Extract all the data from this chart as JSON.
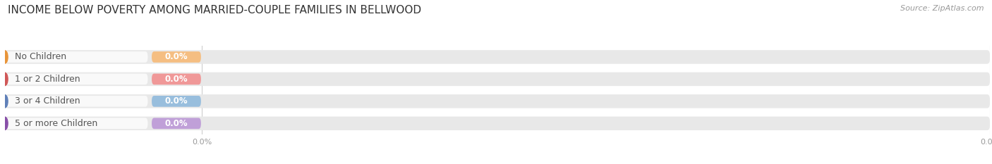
{
  "title": "INCOME BELOW POVERTY AMONG MARRIED-COUPLE FAMILIES IN BELLWOOD",
  "source": "Source: ZipAtlas.com",
  "categories": [
    "No Children",
    "1 or 2 Children",
    "3 or 4 Children",
    "5 or more Children"
  ],
  "values": [
    0.0,
    0.0,
    0.0,
    0.0
  ],
  "bar_colors": [
    "#f5be82",
    "#f09898",
    "#98bedd",
    "#c0a0d8"
  ],
  "dot_colors": [
    "#e8953a",
    "#d05858",
    "#6080b8",
    "#8850a8"
  ],
  "label_bg_color": "#f5f5f5",
  "track_color": "#e8e8e8",
  "label_text_color": "#555555",
  "value_text_color": "#ffffff",
  "tick_line_color": "#cccccc",
  "axis_label_color": "#999999",
  "title_color": "#333333",
  "source_color": "#999999",
  "background_color": "#ffffff",
  "title_fontsize": 11,
  "label_fontsize": 9,
  "value_fontsize": 8.5,
  "source_fontsize": 8,
  "axis_tick_fontsize": 8
}
